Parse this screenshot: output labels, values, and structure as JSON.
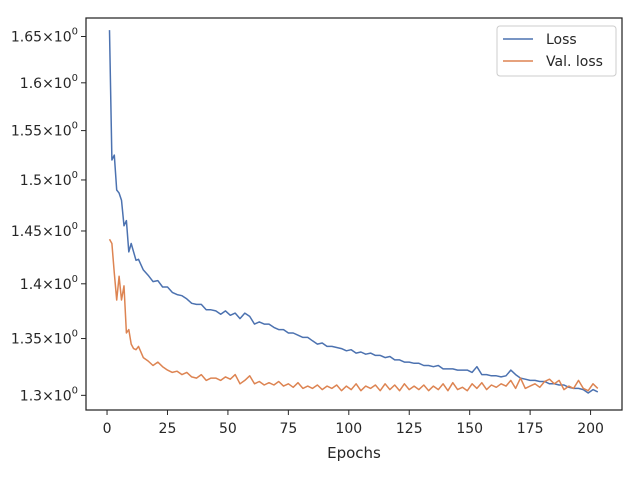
{
  "chart_data": {
    "type": "line",
    "title": "",
    "xlabel": "Epochs",
    "ylabel": "",
    "xlim": [
      -8.7,
      213
    ],
    "ylim": [
      1.2874,
      1.6704
    ],
    "yscale": "log",
    "grid": false,
    "legend_position": "top-right",
    "x_ticks": [
      0,
      25,
      50,
      75,
      100,
      125,
      150,
      175,
      200
    ],
    "y_ticks": [
      {
        "value": 1.3,
        "mantissa": "1.3",
        "power": "0"
      },
      {
        "value": 1.35,
        "mantissa": "1.35",
        "power": "0"
      },
      {
        "value": 1.4,
        "mantissa": "1.4",
        "power": "0"
      },
      {
        "value": 1.45,
        "mantissa": "1.45",
        "power": "0"
      },
      {
        "value": 1.5,
        "mantissa": "1.5",
        "power": "0"
      },
      {
        "value": 1.55,
        "mantissa": "1.55",
        "power": "0"
      },
      {
        "value": 1.6,
        "mantissa": "1.6",
        "power": "0"
      },
      {
        "value": 1.65,
        "mantissa": "1.65",
        "power": "0"
      }
    ],
    "y_tick_times": "×",
    "y_tick_base": "10",
    "series": [
      {
        "name": "Loss",
        "color": "#4c72b0",
        "points": [
          [
            1,
            1.657
          ],
          [
            2,
            1.52
          ],
          [
            3,
            1.525
          ],
          [
            4,
            1.49
          ],
          [
            5,
            1.487
          ],
          [
            6,
            1.48
          ],
          [
            7,
            1.455
          ],
          [
            8,
            1.46
          ],
          [
            9,
            1.43
          ],
          [
            10,
            1.438
          ],
          [
            11,
            1.43
          ],
          [
            12,
            1.422
          ],
          [
            13,
            1.423
          ],
          [
            15,
            1.413
          ],
          [
            17,
            1.408
          ],
          [
            19,
            1.402
          ],
          [
            21,
            1.403
          ],
          [
            23,
            1.397
          ],
          [
            25,
            1.397
          ],
          [
            27,
            1.392
          ],
          [
            29,
            1.39
          ],
          [
            31,
            1.389
          ],
          [
            33,
            1.386
          ],
          [
            35,
            1.382
          ],
          [
            37,
            1.381
          ],
          [
            39,
            1.381
          ],
          [
            41,
            1.376
          ],
          [
            43,
            1.376
          ],
          [
            45,
            1.375
          ],
          [
            47,
            1.372
          ],
          [
            49,
            1.375
          ],
          [
            51,
            1.371
          ],
          [
            53,
            1.373
          ],
          [
            55,
            1.368
          ],
          [
            57,
            1.373
          ],
          [
            59,
            1.37
          ],
          [
            61,
            1.363
          ],
          [
            63,
            1.365
          ],
          [
            65,
            1.363
          ],
          [
            67,
            1.363
          ],
          [
            69,
            1.36
          ],
          [
            71,
            1.358
          ],
          [
            73,
            1.358
          ],
          [
            75,
            1.355
          ],
          [
            77,
            1.355
          ],
          [
            79,
            1.353
          ],
          [
            81,
            1.351
          ],
          [
            83,
            1.351
          ],
          [
            85,
            1.348
          ],
          [
            87,
            1.345
          ],
          [
            89,
            1.346
          ],
          [
            91,
            1.343
          ],
          [
            93,
            1.343
          ],
          [
            95,
            1.342
          ],
          [
            97,
            1.341
          ],
          [
            99,
            1.339
          ],
          [
            101,
            1.34
          ],
          [
            103,
            1.337
          ],
          [
            105,
            1.338
          ],
          [
            107,
            1.336
          ],
          [
            109,
            1.337
          ],
          [
            111,
            1.335
          ],
          [
            113,
            1.335
          ],
          [
            115,
            1.333
          ],
          [
            117,
            1.334
          ],
          [
            119,
            1.331
          ],
          [
            121,
            1.331
          ],
          [
            123,
            1.329
          ],
          [
            125,
            1.329
          ],
          [
            127,
            1.328
          ],
          [
            129,
            1.328
          ],
          [
            131,
            1.326
          ],
          [
            133,
            1.326
          ],
          [
            135,
            1.325
          ],
          [
            137,
            1.326
          ],
          [
            139,
            1.323
          ],
          [
            141,
            1.323
          ],
          [
            143,
            1.323
          ],
          [
            145,
            1.322
          ],
          [
            147,
            1.322
          ],
          [
            149,
            1.322
          ],
          [
            151,
            1.32
          ],
          [
            153,
            1.325
          ],
          [
            155,
            1.318
          ],
          [
            157,
            1.318
          ],
          [
            159,
            1.317
          ],
          [
            161,
            1.317
          ],
          [
            163,
            1.316
          ],
          [
            165,
            1.317
          ],
          [
            167,
            1.322
          ],
          [
            169,
            1.318
          ],
          [
            171,
            1.315
          ],
          [
            173,
            1.314
          ],
          [
            175,
            1.313
          ],
          [
            177,
            1.313
          ],
          [
            179,
            1.312
          ],
          [
            181,
            1.312
          ],
          [
            183,
            1.31
          ],
          [
            185,
            1.31
          ],
          [
            187,
            1.309
          ],
          [
            189,
            1.309
          ],
          [
            191,
            1.307
          ],
          [
            193,
            1.306
          ],
          [
            195,
            1.306
          ],
          [
            197,
            1.305
          ],
          [
            199,
            1.302
          ],
          [
            201,
            1.305
          ],
          [
            203,
            1.303
          ]
        ]
      },
      {
        "name": "Val. loss",
        "color": "#dd8452",
        "points": [
          [
            1,
            1.442
          ],
          [
            2,
            1.438
          ],
          [
            3,
            1.41
          ],
          [
            4,
            1.385
          ],
          [
            5,
            1.407
          ],
          [
            6,
            1.385
          ],
          [
            7,
            1.398
          ],
          [
            8,
            1.355
          ],
          [
            9,
            1.358
          ],
          [
            10,
            1.345
          ],
          [
            11,
            1.341
          ],
          [
            12,
            1.34
          ],
          [
            13,
            1.343
          ],
          [
            15,
            1.333
          ],
          [
            17,
            1.33
          ],
          [
            19,
            1.326
          ],
          [
            21,
            1.329
          ],
          [
            23,
            1.325
          ],
          [
            25,
            1.322
          ],
          [
            27,
            1.32
          ],
          [
            29,
            1.321
          ],
          [
            31,
            1.318
          ],
          [
            33,
            1.32
          ],
          [
            35,
            1.316
          ],
          [
            37,
            1.315
          ],
          [
            39,
            1.318
          ],
          [
            41,
            1.313
          ],
          [
            43,
            1.315
          ],
          [
            45,
            1.315
          ],
          [
            47,
            1.313
          ],
          [
            49,
            1.316
          ],
          [
            51,
            1.314
          ],
          [
            53,
            1.318
          ],
          [
            55,
            1.31
          ],
          [
            57,
            1.313
          ],
          [
            59,
            1.317
          ],
          [
            61,
            1.31
          ],
          [
            63,
            1.312
          ],
          [
            65,
            1.309
          ],
          [
            67,
            1.311
          ],
          [
            69,
            1.309
          ],
          [
            71,
            1.312
          ],
          [
            73,
            1.308
          ],
          [
            75,
            1.31
          ],
          [
            77,
            1.307
          ],
          [
            79,
            1.311
          ],
          [
            81,
            1.306
          ],
          [
            83,
            1.308
          ],
          [
            85,
            1.306
          ],
          [
            87,
            1.309
          ],
          [
            89,
            1.305
          ],
          [
            91,
            1.308
          ],
          [
            93,
            1.306
          ],
          [
            95,
            1.309
          ],
          [
            97,
            1.304
          ],
          [
            99,
            1.308
          ],
          [
            101,
            1.305
          ],
          [
            103,
            1.31
          ],
          [
            105,
            1.304
          ],
          [
            107,
            1.308
          ],
          [
            109,
            1.306
          ],
          [
            111,
            1.309
          ],
          [
            113,
            1.304
          ],
          [
            115,
            1.31
          ],
          [
            117,
            1.305
          ],
          [
            119,
            1.309
          ],
          [
            121,
            1.304
          ],
          [
            123,
            1.31
          ],
          [
            125,
            1.305
          ],
          [
            127,
            1.308
          ],
          [
            129,
            1.305
          ],
          [
            131,
            1.309
          ],
          [
            133,
            1.304
          ],
          [
            135,
            1.308
          ],
          [
            137,
            1.305
          ],
          [
            139,
            1.31
          ],
          [
            141,
            1.304
          ],
          [
            143,
            1.311
          ],
          [
            145,
            1.305
          ],
          [
            147,
            1.307
          ],
          [
            149,
            1.304
          ],
          [
            151,
            1.31
          ],
          [
            153,
            1.306
          ],
          [
            155,
            1.311
          ],
          [
            157,
            1.305
          ],
          [
            159,
            1.309
          ],
          [
            161,
            1.307
          ],
          [
            163,
            1.31
          ],
          [
            165,
            1.308
          ],
          [
            167,
            1.313
          ],
          [
            169,
            1.306
          ],
          [
            171,
            1.315
          ],
          [
            173,
            1.306
          ],
          [
            175,
            1.308
          ],
          [
            177,
            1.31
          ],
          [
            179,
            1.307
          ],
          [
            181,
            1.312
          ],
          [
            183,
            1.314
          ],
          [
            185,
            1.31
          ],
          [
            187,
            1.313
          ],
          [
            189,
            1.305
          ],
          [
            191,
            1.308
          ],
          [
            193,
            1.306
          ],
          [
            195,
            1.313
          ],
          [
            197,
            1.306
          ],
          [
            199,
            1.304
          ],
          [
            201,
            1.31
          ],
          [
            203,
            1.306
          ]
        ]
      }
    ]
  }
}
